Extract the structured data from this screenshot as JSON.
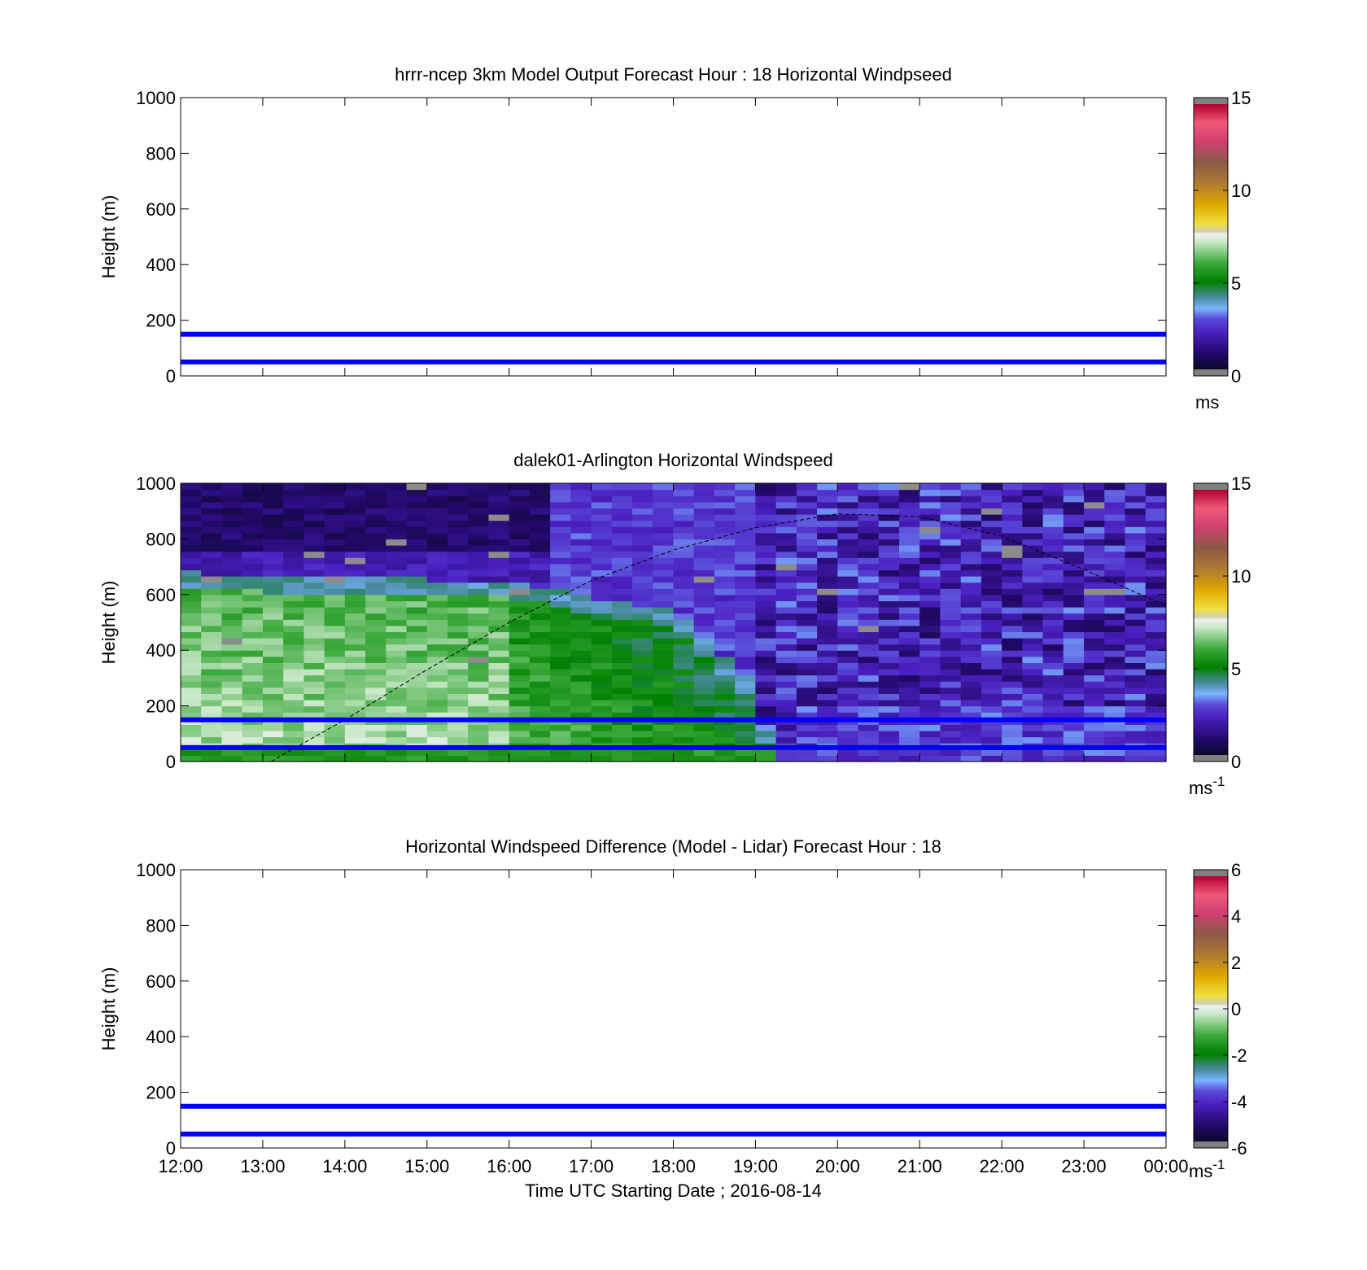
{
  "chart_data": [
    {
      "type": "heatmap",
      "title": "hrrr-ncep 3km Model Output   Forecast Hour : 18 Horizontal Windpseed",
      "ylabel": "Height (m)",
      "xlabel": "",
      "ylim": [
        0,
        1000
      ],
      "yticks": [
        "0",
        "200",
        "400",
        "600",
        "800",
        "1000"
      ],
      "xlim_hours": [
        12,
        24
      ],
      "colorbar": {
        "min": 0,
        "max": 15,
        "ticks": [
          "0",
          "5",
          "10",
          "15"
        ],
        "unit": "ms",
        "unit_sup": ""
      },
      "reference_lines_m": [
        150,
        50
      ],
      "data_present": false
    },
    {
      "type": "heatmap",
      "title": "dalek01-Arlington  Horizontal Windspeed",
      "ylabel": "Height (m)",
      "xlabel": "",
      "ylim": [
        0,
        1000
      ],
      "yticks": [
        "0",
        "200",
        "400",
        "600",
        "800",
        "1000"
      ],
      "xlim_hours": [
        12,
        24
      ],
      "colorbar": {
        "min": 0,
        "max": 15,
        "ticks": [
          "0",
          "5",
          "10",
          "15"
        ],
        "unit": "ms",
        "unit_sup": "-1"
      },
      "reference_lines_m": [
        150,
        50
      ],
      "data_present": true,
      "mixing_height_curve": [
        [
          13.1,
          0
        ],
        [
          14,
          150
        ],
        [
          15,
          330
        ],
        [
          16,
          500
        ],
        [
          17,
          650
        ],
        [
          18,
          760
        ],
        [
          19,
          840
        ],
        [
          20,
          890
        ],
        [
          21,
          880
        ],
        [
          22,
          810
        ],
        [
          23,
          690
        ],
        [
          24,
          560
        ]
      ],
      "profile_summary": "Low-level wind 5-8 m/s (green/white) from 12:00-19:00 below ~600 m, decreasing with time; 1-3 m/s (purple/blue) aloft and after 19:00."
    },
    {
      "type": "heatmap",
      "title": "Horizontal Windspeed Difference (Model - Lidar) Forecast Hour : 18",
      "ylabel": "Height (m)",
      "xlabel": "Time UTC  Starting Date ; 2016-08-14",
      "ylim": [
        0,
        1000
      ],
      "yticks": [
        "0",
        "200",
        "400",
        "600",
        "800",
        "1000"
      ],
      "xticks": [
        "12:00",
        "13:00",
        "14:00",
        "15:00",
        "16:00",
        "17:00",
        "18:00",
        "19:00",
        "20:00",
        "21:00",
        "22:00",
        "23:00",
        "00:00"
      ],
      "xlim_hours": [
        12,
        24
      ],
      "colorbar": {
        "min": -6,
        "max": 6,
        "ticks": [
          "-6",
          "-4",
          "-2",
          "0",
          "2",
          "4",
          "6"
        ],
        "unit": "ms",
        "unit_sup": "-1"
      },
      "reference_lines_m": [
        150,
        50
      ],
      "data_present": false
    }
  ],
  "colors": {
    "reference_line": "#0000ff",
    "colorbar_end": "#808080"
  }
}
